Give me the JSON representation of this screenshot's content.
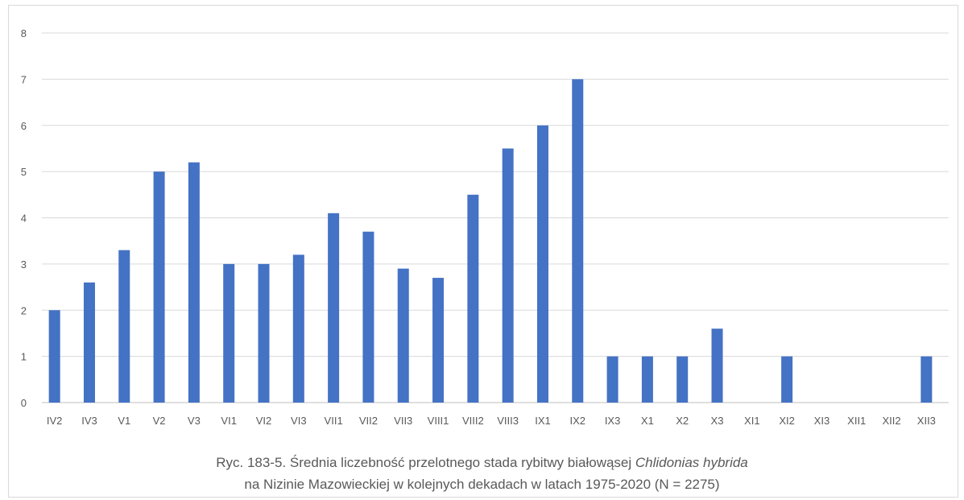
{
  "chart_data": {
    "type": "bar",
    "categories": [
      "IV2",
      "IV3",
      "V1",
      "V2",
      "V3",
      "VI1",
      "VI2",
      "VI3",
      "VII1",
      "VII2",
      "VII3",
      "VIII1",
      "VIII2",
      "VIII3",
      "IX1",
      "IX2",
      "IX3",
      "X1",
      "X2",
      "X3",
      "XI1",
      "XI2",
      "XI3",
      "XII1",
      "XII2",
      "XII3"
    ],
    "values": [
      2,
      2.6,
      3.3,
      5,
      5.2,
      3,
      3,
      3.2,
      4.1,
      3.7,
      2.9,
      2.7,
      4.5,
      5.5,
      6,
      7,
      1,
      1,
      1,
      1.6,
      0,
      1,
      0,
      0,
      0,
      1
    ],
    "ylim": [
      0,
      8
    ],
    "yticks": [
      "0",
      "1",
      "2",
      "3",
      "4",
      "5",
      "6",
      "7",
      "8"
    ],
    "bar_color": "#4472c4",
    "grid": true,
    "title": "",
    "xlabel": "",
    "ylabel": ""
  },
  "caption": {
    "line1_prefix": "Ryc. 183-5. Średnia liczebność przelotnego stada rybitwy białowąsej ",
    "line1_species": "Chlidonias hybrida",
    "line2": "na Nizinie Mazowieckiej w kolejnych dekadach w latach 1975-2020  (N = 2275)"
  }
}
